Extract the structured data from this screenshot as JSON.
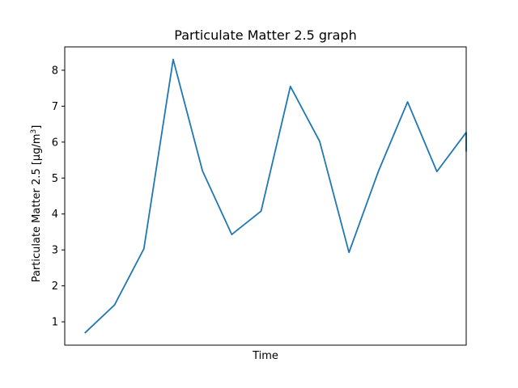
{
  "chart_data": {
    "type": "line",
    "title": "Particulate Matter 2.5 graph",
    "xlabel": "Time",
    "ylabel": "Particulate Matter 2.5 [μg/m",
    "ylabel_superscript": "3",
    "ylabel_suffix": "]",
    "ylim": [
      0.35,
      8.65
    ],
    "yticks": [
      1,
      2,
      3,
      4,
      5,
      6,
      7,
      8
    ],
    "xlim": [
      -0.7,
      13.0
    ],
    "grid": false,
    "line_color": "#1f77b4",
    "x": [
      0,
      1,
      2,
      3,
      4,
      5,
      6,
      7,
      8,
      9,
      10,
      11,
      12,
      13,
      13,
      13
    ],
    "y": [
      0.7,
      1.47,
      3.03,
      8.3,
      5.2,
      3.43,
      4.08,
      7.55,
      6.02,
      2.93,
      5.18,
      7.12,
      5.18,
      6.27,
      5.75,
      5.83
    ]
  }
}
